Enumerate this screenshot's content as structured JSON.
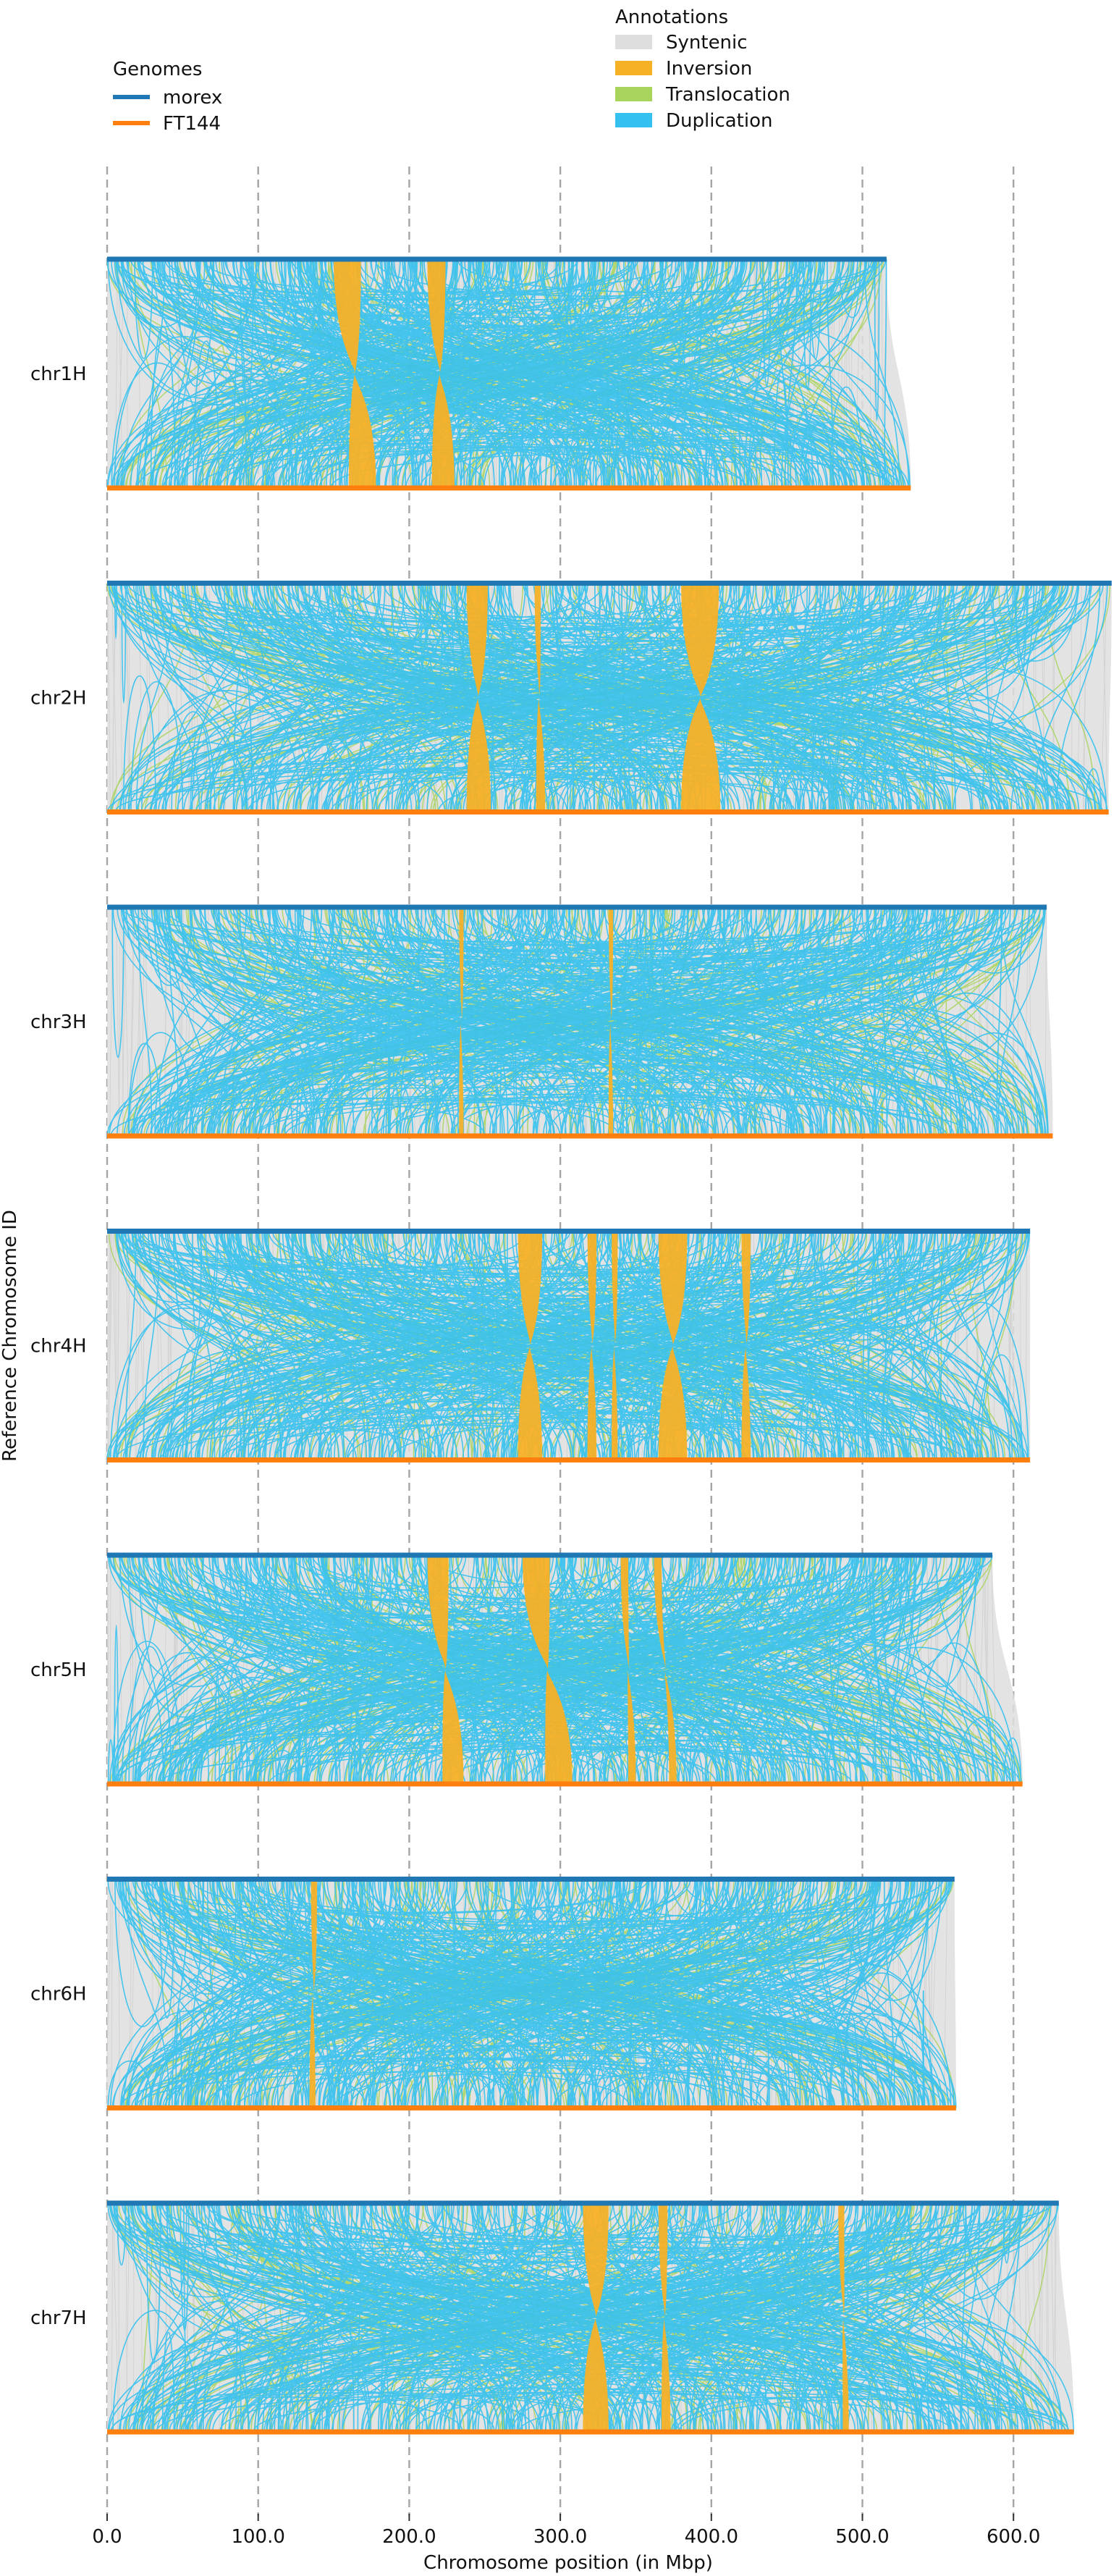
{
  "chart_data": {
    "type": "synteny",
    "xlabel": "Chromosome position (in Mbp)",
    "ylabel": "Reference Chromosome ID",
    "xlim": [
      0,
      680
    ],
    "xticks": [
      0,
      100,
      200,
      300,
      400,
      500,
      600
    ],
    "xtick_labels": [
      "0.0",
      "100.0",
      "200.0",
      "300.0",
      "400.0",
      "500.0",
      "600.0"
    ],
    "grid": "vertical-dashed",
    "legend_genomes": {
      "title": "Genomes",
      "placement": "top-left",
      "items": [
        {
          "label": "morex",
          "color": "#1f77b4"
        },
        {
          "label": "FT144",
          "color": "#ff7f0e"
        }
      ]
    },
    "legend_annotations": {
      "title": "Annotations",
      "placement": "top-center",
      "items": [
        {
          "label": "Syntenic",
          "color": "#dedede"
        },
        {
          "label": "Inversion",
          "color": "#f7b127"
        },
        {
          "label": "Translocation",
          "color": "#a9d45b"
        },
        {
          "label": "Duplication",
          "color": "#35c1f0"
        }
      ]
    },
    "chromosomes": [
      {
        "id": "chr1H",
        "morex_len": 516,
        "ft144_len": 532,
        "inversions": [
          [
            150,
            168,
            160,
            178
          ],
          [
            212,
            224,
            215,
            230
          ]
        ]
      },
      {
        "id": "chr2H",
        "morex_len": 665,
        "ft144_len": 663,
        "inversions": [
          [
            238,
            252,
            238,
            254
          ],
          [
            283,
            287,
            284,
            290
          ],
          [
            380,
            405,
            380,
            406
          ]
        ]
      },
      {
        "id": "chr3H",
        "morex_len": 622,
        "ft144_len": 626,
        "inversions": [
          [
            233,
            236,
            233,
            236
          ],
          [
            332,
            335,
            332,
            335
          ]
        ]
      },
      {
        "id": "chr4H",
        "morex_len": 611,
        "ft144_len": 611,
        "inversions": [
          [
            272,
            288,
            272,
            288
          ],
          [
            318,
            324,
            318,
            324
          ],
          [
            334,
            338,
            334,
            338
          ],
          [
            365,
            384,
            365,
            384
          ],
          [
            420,
            426,
            420,
            426
          ]
        ]
      },
      {
        "id": "chr5H",
        "morex_len": 586,
        "ft144_len": 606,
        "inversions": [
          [
            212,
            226,
            222,
            236
          ],
          [
            275,
            293,
            290,
            308
          ],
          [
            340,
            345,
            345,
            350
          ],
          [
            362,
            367,
            372,
            377
          ]
        ]
      },
      {
        "id": "chr6H",
        "morex_len": 561,
        "ft144_len": 562,
        "inversions": [
          [
            135,
            139,
            134,
            138
          ]
        ]
      },
      {
        "id": "chr7H",
        "morex_len": 630,
        "ft144_len": 640,
        "inversions": [
          [
            315,
            332,
            315,
            332
          ],
          [
            365,
            371,
            367,
            373
          ],
          [
            484,
            488,
            487,
            491
          ]
        ]
      }
    ]
  }
}
